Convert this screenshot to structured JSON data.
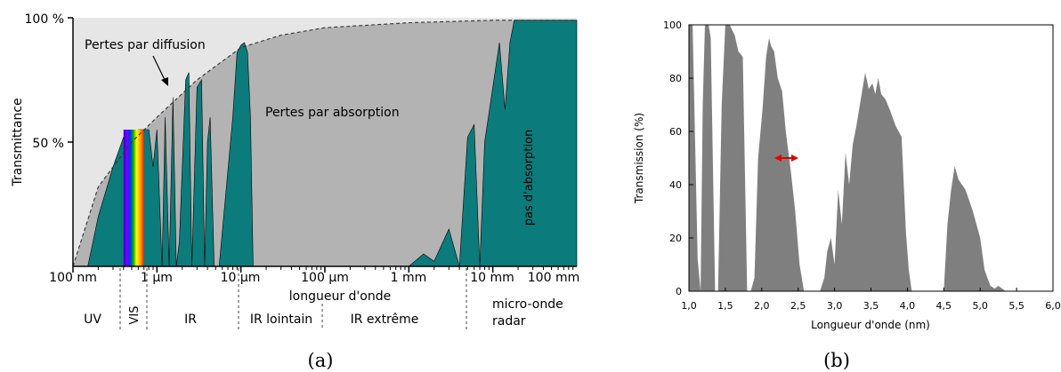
{
  "captions": {
    "a": "(a)",
    "b": "(b)"
  },
  "colors": {
    "teal": "#0c7b7b",
    "absorption_gray": "#b3b3b3",
    "scatter_gray": "#e6e6e6",
    "spectrum_gray": "#7f7f7f",
    "arrow_red": "#e00000"
  },
  "chart_data": [
    {
      "type": "area",
      "ylabel": "Transmittance",
      "xscale": "log",
      "yticks": [
        "100 %",
        "50 %"
      ],
      "xticks": [
        "100 nm",
        "1 µm",
        "10 µm",
        "100 µm",
        "1 mm",
        "10 mm",
        "100 mm"
      ],
      "xlabel": "longueur d'onde",
      "annotations": {
        "scattering": "Pertes par diffusion",
        "absorption": "Pertes par absorption",
        "no_absorption": "pas d'absorption"
      },
      "bands": {
        "uv": "UV",
        "vis": "VIS",
        "ir": "IR",
        "far_ir": "IR lointain",
        "extreme_ir": "IR extrême",
        "microwave_1": "micro-onde",
        "microwave_2": "radar"
      },
      "scatter_limit": {
        "wavelength_um": [
          0.1,
          0.2,
          0.5,
          1,
          3,
          10,
          30,
          100,
          1000,
          10000,
          100000
        ],
        "transmittance_pct": [
          0,
          32,
          50,
          60,
          75,
          88,
          93,
          96,
          98,
          99,
          99
        ]
      },
      "transmission": {
        "wavelength_um": [
          0.15,
          0.2,
          0.3,
          0.4,
          0.6,
          0.8,
          0.9,
          1.0,
          1.15,
          1.25,
          1.4,
          1.55,
          1.7,
          1.85,
          2.2,
          2.4,
          2.6,
          3.0,
          3.4,
          3.7,
          4.0,
          4.3,
          4.8,
          5.5,
          8,
          9,
          10,
          11,
          12,
          13,
          14,
          1000,
          1500,
          2000,
          3000,
          4000,
          5000,
          6000,
          7000,
          8000,
          12000,
          14000,
          16000,
          18000,
          20000,
          100000
        ],
        "transmittance_pct": [
          0,
          20,
          40,
          52,
          55,
          55,
          40,
          55,
          0,
          60,
          0,
          68,
          0,
          10,
          75,
          78,
          0,
          72,
          75,
          0,
          50,
          60,
          0,
          0,
          60,
          86,
          89,
          90,
          86,
          60,
          0,
          0,
          5,
          2,
          15,
          0,
          52,
          57,
          0,
          50,
          90,
          63,
          90,
          99,
          99,
          99
        ]
      },
      "visible_band_um": [
        0.4,
        0.7
      ]
    },
    {
      "type": "area",
      "title": "",
      "xlabel": "Longueur d'onde (nm)",
      "ylabel": "Transmission (%)",
      "xlim": [
        1.0,
        6.0
      ],
      "ylim": [
        0,
        100
      ],
      "xticks": [
        "1,0",
        "1,5",
        "2,0",
        "2,5",
        "3,0",
        "3,5",
        "4,0",
        "4,5",
        "5,0",
        "5,5",
        "6,0"
      ],
      "yticks": [
        "0",
        "20",
        "40",
        "60",
        "80",
        "100"
      ],
      "x": [
        1.0,
        1.05,
        1.12,
        1.16,
        1.19,
        1.22,
        1.27,
        1.3,
        1.36,
        1.4,
        1.45,
        1.5,
        1.56,
        1.63,
        1.68,
        1.74,
        1.8,
        1.85,
        1.9,
        1.95,
        2.01,
        2.06,
        2.1,
        2.13,
        2.17,
        2.22,
        2.28,
        2.33,
        2.4,
        2.46,
        2.52,
        2.58,
        2.65,
        2.72,
        2.8,
        2.86,
        2.9,
        2.95,
        3.0,
        3.05,
        3.1,
        3.15,
        3.2,
        3.25,
        3.3,
        3.36,
        3.42,
        3.47,
        3.52,
        3.56,
        3.6,
        3.64,
        3.7,
        3.76,
        3.84,
        3.92,
        3.98,
        4.02,
        4.06,
        4.1,
        4.2,
        4.4,
        4.5,
        4.55,
        4.6,
        4.65,
        4.7,
        4.8,
        4.9,
        5.0,
        5.06,
        5.1,
        5.14,
        5.2,
        5.25,
        5.3,
        5.35,
        6.0
      ],
      "y": [
        100,
        100,
        12,
        0,
        70,
        100,
        100,
        95,
        0,
        0,
        70,
        100,
        100,
        96,
        90,
        88,
        0,
        0,
        5,
        50,
        68,
        88,
        95,
        92,
        90,
        80,
        75,
        60,
        45,
        30,
        10,
        0,
        0,
        0,
        0,
        5,
        15,
        20,
        10,
        38,
        25,
        52,
        40,
        55,
        62,
        72,
        82,
        76,
        78,
        74,
        80,
        74,
        72,
        68,
        62,
        58,
        22,
        8,
        0,
        0,
        0,
        0,
        0,
        25,
        38,
        47,
        42,
        38,
        30,
        20,
        8,
        5,
        2,
        1,
        2,
        1,
        0,
        0
      ],
      "annotation": "double-headed arrow at about 2,2 nm, 50 %"
    }
  ]
}
